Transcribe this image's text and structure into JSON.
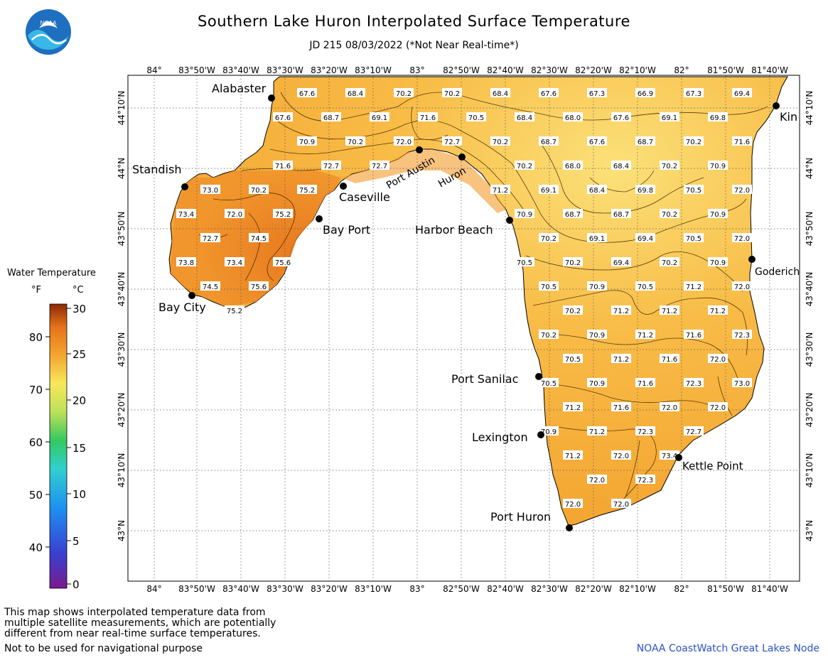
{
  "header": {
    "title": "Southern Lake Huron Interpolated Surface Temperature",
    "subtitle": "JD 215 08/03/2022 (*Not Near Real-time*)"
  },
  "logo": {
    "text": "NOAA"
  },
  "axes": {
    "lon_labels": [
      "84°",
      "83°50'W",
      "83°40'W",
      "83°30'W",
      "83°20'W",
      "83°10'W",
      "83°",
      "82°50'W",
      "82°40'W",
      "82°30'W",
      "82°20'W",
      "82°10'W",
      "82°",
      "81°50'W",
      "81°40'W"
    ],
    "lat_labels": [
      "44°10'N",
      "44°N",
      "43°50'N",
      "43°40'N",
      "43°30'N",
      "43°20'N",
      "43°10'N",
      "43°N"
    ]
  },
  "legend": {
    "title": "Water Temperature",
    "unit_f": "°F",
    "unit_c": "°C",
    "f_ticks": [
      "80",
      "70",
      "60",
      "50",
      "40"
    ],
    "c_ticks": [
      "30",
      "25",
      "20",
      "15",
      "10",
      "5",
      "0"
    ]
  },
  "places": [
    {
      "name": "Alabaster"
    },
    {
      "name": "Standish"
    },
    {
      "name": "Caseville"
    },
    {
      "name": "Bay Port"
    },
    {
      "name": "Bay City"
    },
    {
      "name": "Port Austin"
    },
    {
      "name": "Huron"
    },
    {
      "name": "Harbor Beach"
    },
    {
      "name": "Goderich"
    },
    {
      "name": "Kin"
    },
    {
      "name": "Port Sanilac"
    },
    {
      "name": "Lexington"
    },
    {
      "name": "Kettle Point"
    },
    {
      "name": "Port Huron"
    }
  ],
  "temperatures": [
    "67.6",
    "68.4",
    "70.2",
    "70.2",
    "68.4",
    "67.6",
    "67.3",
    "66.9",
    "67.3",
    "69.4",
    "67.6",
    "68.7",
    "69.1",
    "71.6",
    "70.5",
    "68.4",
    "68.0",
    "67.6",
    "69.1",
    "69.8",
    "70.9",
    "70.2",
    "72.0",
    "72.7",
    "70.2",
    "68.7",
    "67.6",
    "68.7",
    "70.2",
    "71.6",
    "71.6",
    "72.7",
    "72.7",
    "70.2",
    "68.0",
    "68.4",
    "70.2",
    "70.9",
    "73.0",
    "70.2",
    "75.2",
    "71.2",
    "69.1",
    "68.4",
    "69.8",
    "70.5",
    "72.0",
    "73.4",
    "72.0",
    "75.2",
    "70.9",
    "68.7",
    "68.7",
    "70.2",
    "70.9",
    "72.7",
    "74.5",
    "70.2",
    "69.1",
    "69.4",
    "70.5",
    "72.0",
    "73.8",
    "73.4",
    "75.6",
    "70.5",
    "70.2",
    "69.4",
    "70.2",
    "70.9",
    "74.5",
    "75.6",
    "75.2",
    "70.5",
    "70.9",
    "70.5",
    "71.2",
    "72.0",
    "70.2",
    "71.2",
    "71.2",
    "71.2",
    "70.2",
    "70.9",
    "71.2",
    "71.6",
    "72.3",
    "70.5",
    "71.2",
    "71.6",
    "72.0",
    "70.5",
    "70.9",
    "71.6",
    "72.3",
    "73.0",
    "71.2",
    "71.6",
    "72.0",
    "72.0",
    "70.9",
    "71.2",
    "72.3",
    "72.7",
    "71.2",
    "72.0",
    "73.4",
    "72.0",
    "72.3",
    "72.0",
    "72.0"
  ],
  "footer": {
    "note_line1": "This map shows interpolated temperature data from",
    "note_line2": "multiple satellite measurements, which are potentially",
    "note_line3": "different from near real-time surface temperatures.",
    "nav_note": "Not to be used for navigational purpose",
    "credit": "NOAA CoastWatch Great Lakes Node"
  }
}
